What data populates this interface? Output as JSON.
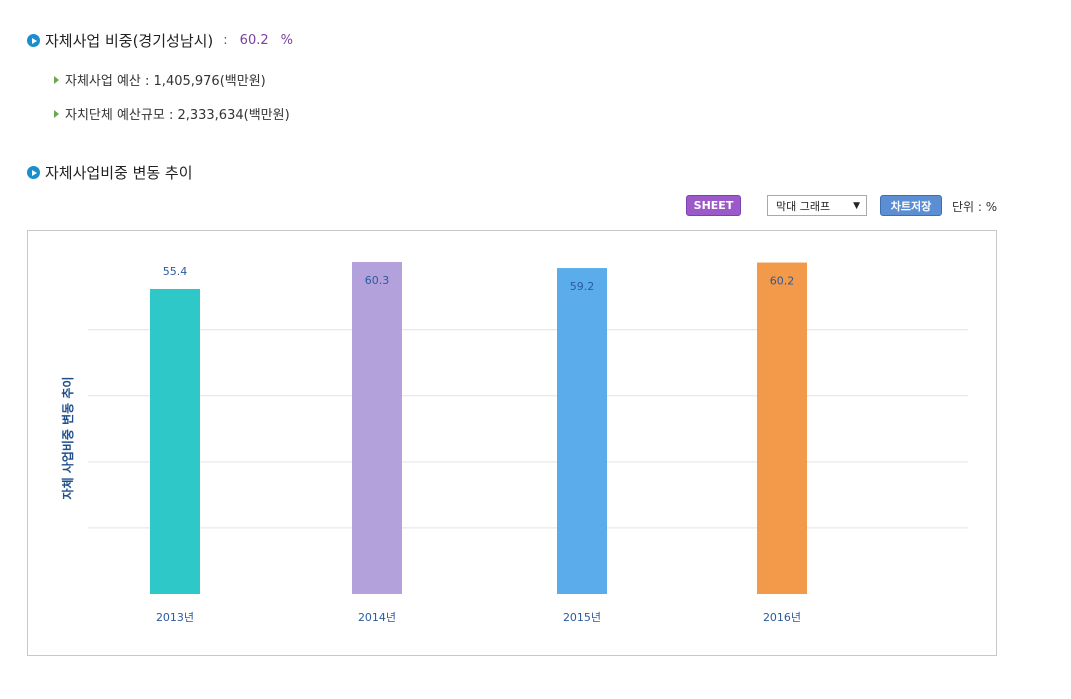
{
  "summary": {
    "title": "자체사업 비중(경기성남시)",
    "colon": ":",
    "ratio": "60.2",
    "unit": "%",
    "items": [
      {
        "text": "자체사업 예산 : 1,405,976(백만원)"
      },
      {
        "text": "자치단체 예산규모 : 2,333,634(백만원)"
      }
    ]
  },
  "trend": {
    "title": "자체사업비중 변동 추이"
  },
  "toolbar": {
    "sheet_label": "SHEET",
    "chart_type_selected": "막대 그래프",
    "save_label": "차트저장",
    "unit_label": "단위 : %"
  },
  "chart_data": {
    "type": "bar",
    "title": "",
    "xlabel": "",
    "ylabel": "자체 사업비중 변동 추이",
    "categories": [
      "2013년",
      "2014년",
      "2015년",
      "2016년"
    ],
    "values": [
      55.4,
      60.3,
      59.2,
      60.2
    ],
    "labels": [
      "55.4",
      "60.3",
      "59.2",
      "60.2"
    ],
    "colors": [
      "#2ec8c8",
      "#b3a1dc",
      "#5aadea",
      "#f2994a"
    ],
    "ylim": [
      0,
      60.3
    ],
    "grid": true,
    "grid_values": [
      12,
      24,
      36,
      48
    ]
  }
}
